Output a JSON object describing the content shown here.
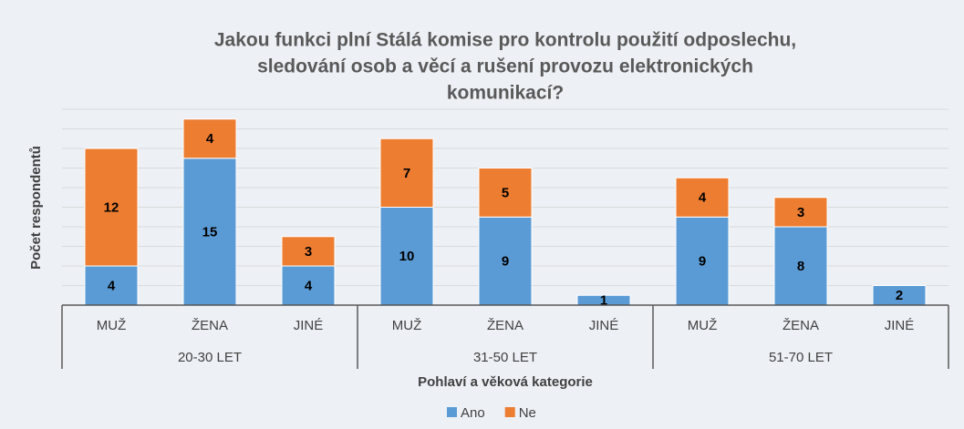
{
  "chart_data": {
    "type": "stacked_bar",
    "title": [
      "Jakou funkci plní Stálá komise pro kontrolu použití odposlechu,",
      "sledování osob a věcí a rušení provozu elektronických",
      "komunikací?"
    ],
    "y_label": "Počet respondentů",
    "x_label": "Pohlaví a věková kategorie",
    "categories": [
      "MUŽ",
      "ŽENA",
      "JINÉ",
      "MUŽ",
      "ŽENA",
      "JINÉ",
      "MUŽ",
      "ŽENA",
      "JINÉ"
    ],
    "groups": [
      "20-30 LET",
      "31-50 LET",
      "51-70 LET"
    ],
    "series": [
      {
        "name": "Ano",
        "color": "#5b9bd5",
        "values": [
          4,
          15,
          4,
          10,
          9,
          1,
          9,
          8,
          2
        ]
      },
      {
        "name": "Ne",
        "color": "#ed7d31",
        "values": [
          12,
          4,
          3,
          7,
          5,
          null,
          4,
          3,
          null
        ]
      }
    ],
    "ylim": [
      0,
      20
    ],
    "yticks": [
      0,
      2,
      4,
      6,
      8,
      10,
      12,
      14,
      16,
      18,
      20
    ],
    "grid": true,
    "legend": "bottom"
  }
}
